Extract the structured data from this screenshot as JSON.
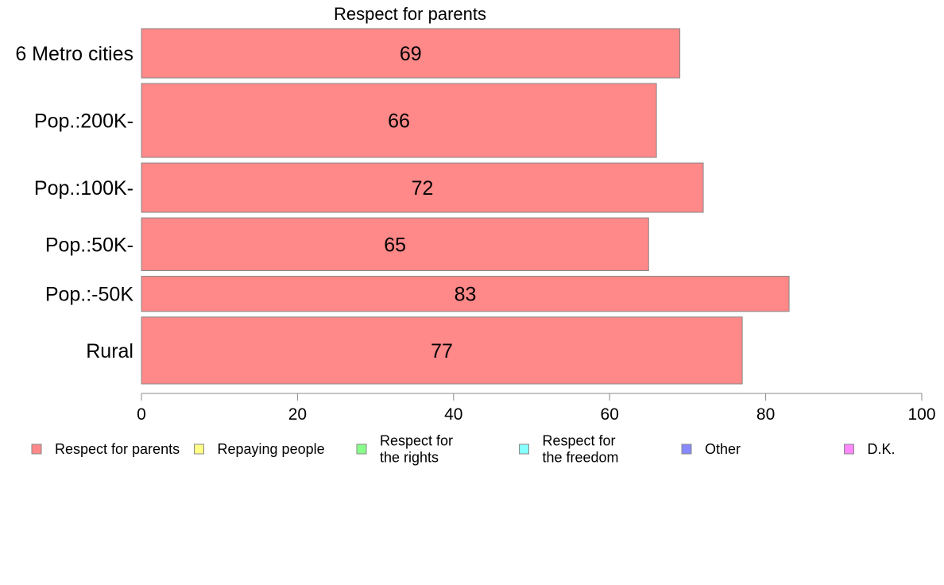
{
  "chart_data": {
    "type": "bar",
    "orientation": "horizontal",
    "title": "Respect for parents",
    "categories": [
      "6 Metro cities",
      "Pop.:200K-",
      "Pop.:100K-",
      "Pop.:50K-",
      "Pop.:-50K",
      "Rural"
    ],
    "series": [
      {
        "name": "Respect for parents",
        "values": [
          69,
          66,
          72,
          65,
          83,
          77
        ],
        "color": "#ff8888"
      }
    ],
    "bar_shares": [
      0.14,
      0.21,
      0.14,
      0.15,
      0.1,
      0.19
    ],
    "data_labels": [
      "69",
      "66",
      "72",
      "65",
      "83",
      "77"
    ],
    "xlim": [
      0,
      100
    ],
    "xticks": [
      "0",
      "20",
      "40",
      "60",
      "80",
      "100"
    ],
    "xlabel": "",
    "ylabel": "",
    "grid": false,
    "legend": {
      "placement": "bottom",
      "entries": [
        {
          "lines": [
            "Respect for parents"
          ],
          "color": "#ff8888"
        },
        {
          "lines": [
            "Repaying people"
          ],
          "color": "#ffff88"
        },
        {
          "lines": [
            "Respect for",
            "the rights"
          ],
          "color": "#88ff88"
        },
        {
          "lines": [
            "Respect for",
            "the freedom"
          ],
          "color": "#88ffff"
        },
        {
          "lines": [
            "Other"
          ],
          "color": "#8888ff"
        },
        {
          "lines": [
            "D.K."
          ],
          "color": "#ff88ff"
        }
      ]
    }
  }
}
